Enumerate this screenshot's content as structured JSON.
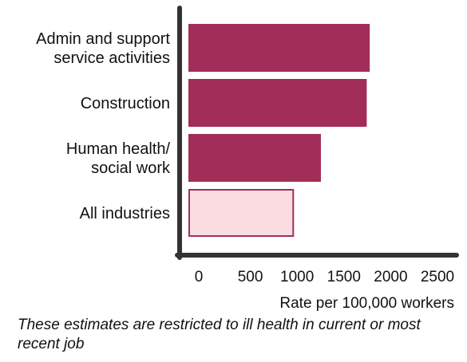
{
  "chart_data": {
    "type": "bar",
    "orientation": "horizontal",
    "categories": [
      [
        "Admin and support",
        "service activities"
      ],
      [
        "Construction"
      ],
      [
        "Human health/",
        "social work"
      ],
      [
        "All industries"
      ]
    ],
    "values": [
      1820,
      1790,
      1330,
      1060
    ],
    "highlight_category_index": 3,
    "colors": {
      "bar": "#a22d58",
      "highlight_fill": "#fadde1",
      "highlight_stroke": "#a22d58",
      "axis": "#333333"
    },
    "xlabel": "Rate per 100,000 workers",
    "xticks": [
      "0",
      "500",
      "1000",
      "1500",
      "2000",
      "2500"
    ],
    "xlim": [
      0,
      2500
    ],
    "grid": false,
    "legend": "none"
  },
  "footnote": "These estimates are restricted to ill health in current or most recent job"
}
